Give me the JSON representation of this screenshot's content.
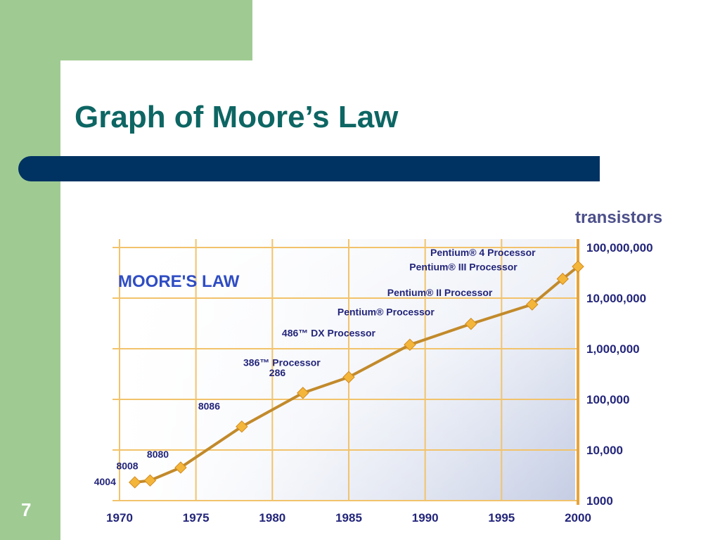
{
  "slide": {
    "title": "Graph of Moore’s Law",
    "number": "7"
  },
  "colors": {
    "band": "#9fcb93",
    "title": "#0d6663",
    "bar": "#003262",
    "line": "#c28a2b",
    "marker": "#f4b63a",
    "grid": "#f2c36b",
    "text": "#23257a"
  },
  "chart_data": {
    "type": "line",
    "title": "MOORE'S LAW",
    "xlabel": "",
    "ylabel": "transistors",
    "yscale": "log",
    "xlim": [
      1970,
      2000
    ],
    "ylim": [
      1000,
      100000000
    ],
    "grid": true,
    "x_ticks": [
      "1970",
      "1975",
      "1980",
      "1985",
      "1990",
      "1995",
      "2000"
    ],
    "y_ticks": [
      "1000",
      "10,000",
      "100,000",
      "1,000,000",
      "10,000,000",
      "100,000,000"
    ],
    "series": [
      {
        "name": "",
        "points": [
          {
            "label": "4004",
            "x": 1971,
            "y": 2300
          },
          {
            "label": "8008",
            "x": 1972,
            "y": 2500
          },
          {
            "label": "8080",
            "x": 1974,
            "y": 4500
          },
          {
            "label": "8086",
            "x": 1978,
            "y": 29000
          },
          {
            "label": "286",
            "x": 1982,
            "y": 134000
          },
          {
            "label": "386™ Processor",
            "x": 1985,
            "y": 275000
          },
          {
            "label": "486™ DX Processor",
            "x": 1989,
            "y": 1200000
          },
          {
            "label": "Pentium® Processor",
            "x": 1993,
            "y": 3100000
          },
          {
            "label": "Pentium® II Processor",
            "x": 1997,
            "y": 7500000
          },
          {
            "label": "Pentium® III Processor",
            "x": 1999,
            "y": 24000000
          },
          {
            "label": "Pentium® 4 Processor",
            "x": 2000,
            "y": 42000000
          }
        ]
      }
    ]
  }
}
